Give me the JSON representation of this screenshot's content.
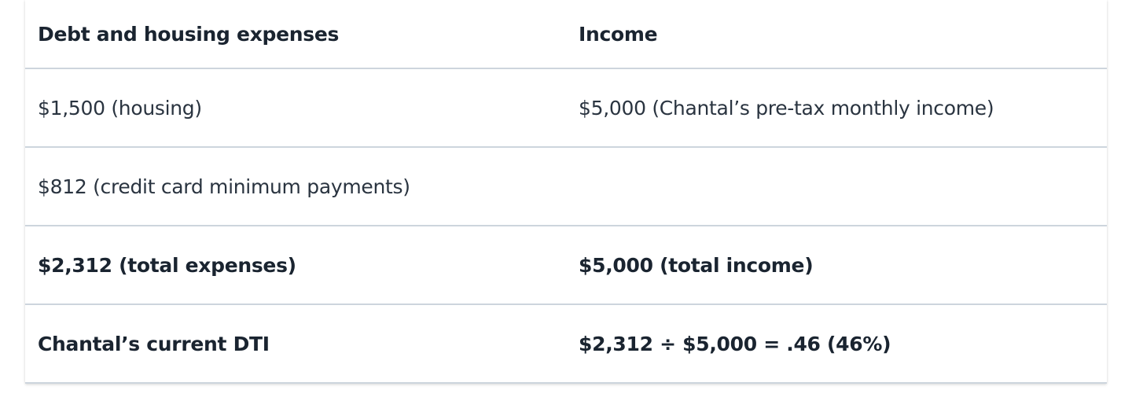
{
  "table": {
    "headers": [
      "Debt and housing expenses",
      "Income"
    ],
    "rows": [
      {
        "cells": [
          "$1,500 (housing)",
          "$5,000 (Chantal’s pre-tax monthly income)"
        ],
        "bold": false
      },
      {
        "cells": [
          "$812 (credit card minimum payments)",
          ""
        ],
        "bold": false
      },
      {
        "cells": [
          "$2,312 (total expenses)",
          "$5,000 (total income)"
        ],
        "bold": true
      },
      {
        "cells": [
          "Chantal’s current DTI",
          "$2,312 ÷ $5,000 = .46 (46%)"
        ],
        "bold": true
      }
    ]
  }
}
